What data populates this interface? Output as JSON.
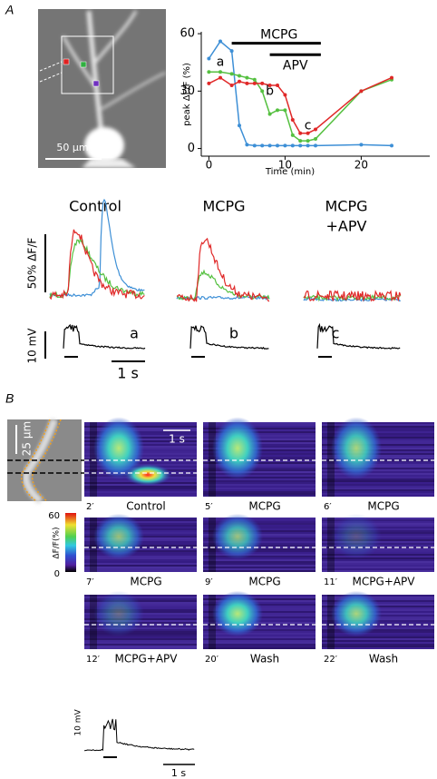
{
  "panel_labels": [
    "A",
    "B"
  ],
  "chart_data": {
    "type": "line",
    "ylabel": "peak ΔF/F (%)",
    "xlabel": "Time (min)",
    "x": [
      0,
      1.5,
      3,
      4,
      5,
      6,
      7,
      8,
      9,
      10,
      11,
      12,
      13,
      14,
      20,
      24
    ],
    "series": [
      {
        "color": "#3d8fd6",
        "values": [
          47,
          56,
          51,
          12,
          2,
          1.5,
          1.5,
          1.5,
          1.5,
          1.5,
          1.5,
          1.5,
          1.5,
          1.5,
          2,
          1.5
        ]
      },
      {
        "color": "#55c040",
        "values": [
          40,
          40,
          39,
          38,
          37,
          36,
          30,
          18,
          20,
          20,
          7,
          4,
          4,
          5,
          30,
          36
        ]
      },
      {
        "color": "#e02828",
        "values": [
          34,
          37,
          33,
          35,
          34,
          34,
          34,
          33,
          33,
          28,
          15,
          8,
          8,
          10,
          30,
          37
        ]
      }
    ],
    "xlim": [
      -1,
      29
    ],
    "xticks": [
      0,
      10,
      20
    ],
    "ylim": [
      -4,
      61
    ],
    "yticks": [
      0,
      30,
      60
    ],
    "bars": [
      {
        "text": "MCPG",
        "x": [
          3,
          14.7
        ],
        "y": 55
      },
      {
        "text": "APV",
        "x": [
          8,
          14.7
        ],
        "y": 49
      }
    ],
    "labels": [
      {
        "text": "a",
        "x": 1.5,
        "y": 45
      },
      {
        "text": "b",
        "x": 8,
        "y": 30
      },
      {
        "text": "c",
        "x": 13,
        "y": 12
      }
    ]
  },
  "panel_a": {
    "scale_bar": "50 µm",
    "trace_titles": [
      "Control",
      "MCPG",
      [
        "MCPG",
        "+APV"
      ]
    ],
    "dff_scale": "50% ΔF/F",
    "voltage_scale": "10 mV",
    "trace_letters": [
      "a",
      "b",
      "c"
    ],
    "time_scale": "1 s"
  },
  "panel_b": {
    "scale_bar": "25 µm",
    "time_scale": "1 s",
    "colorbar": {
      "max": 60,
      "min": 0,
      "label": "ΔF/F(%)"
    },
    "images": [
      {
        "time": "2′",
        "label": "Control"
      },
      {
        "time": "5′",
        "label": "MCPG"
      },
      {
        "time": "6′",
        "label": "MCPG"
      },
      {
        "time": "7′",
        "label": "MCPG"
      },
      {
        "time": "9′",
        "label": "MCPG"
      },
      {
        "time": "11′",
        "label": "MCPG+APV"
      },
      {
        "time": "12′",
        "label": "MCPG+APV"
      },
      {
        "time": "20′",
        "label": "Wash"
      },
      {
        "time": "22′",
        "label": "Wash"
      }
    ],
    "voltage_scale": "10 mV",
    "trace_time_scale": "1 s"
  }
}
